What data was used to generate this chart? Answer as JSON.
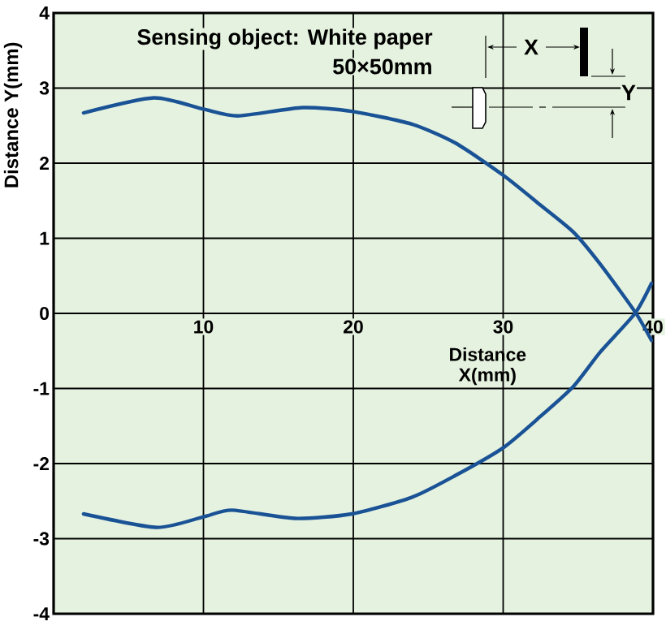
{
  "chart_data": {
    "type": "line",
    "xlabel": "Distance X(mm)",
    "ylabel": "Distance Y(mm)",
    "annotations": [
      "Sensing object: White paper",
      "50×50mm",
      "X",
      "Y"
    ],
    "xlim": [
      0,
      40
    ],
    "ylim": [
      -4,
      4
    ],
    "xticks": [
      10,
      20,
      30,
      40
    ],
    "yticks": [
      -4,
      -3,
      -2,
      -1,
      0,
      1,
      2,
      3,
      4
    ],
    "grid": true,
    "series": [
      {
        "color": "#1a5296",
        "x": [
          2.0,
          6.7,
          10.0,
          12.3,
          16.6,
          19.9,
          23.9,
          26.8,
          30.0,
          32.5,
          34.7,
          36.5,
          38.8,
          39.9
        ],
        "values": [
          2.67,
          2.87,
          2.72,
          2.63,
          2.74,
          2.69,
          2.52,
          2.27,
          1.84,
          1.44,
          1.08,
          0.65,
          0.02,
          -0.36
        ]
      },
      {
        "color": "#1a5296",
        "x": [
          2.0,
          6.9,
          10.0,
          11.9,
          16.1,
          19.9,
          23.9,
          26.8,
          30.0,
          32.5,
          34.7,
          36.5,
          38.8,
          39.9
        ],
        "values": [
          -2.67,
          -2.85,
          -2.71,
          -2.62,
          -2.73,
          -2.67,
          -2.45,
          -2.16,
          -1.79,
          -1.37,
          -0.97,
          -0.51,
          0.0,
          0.4
        ]
      }
    ]
  }
}
